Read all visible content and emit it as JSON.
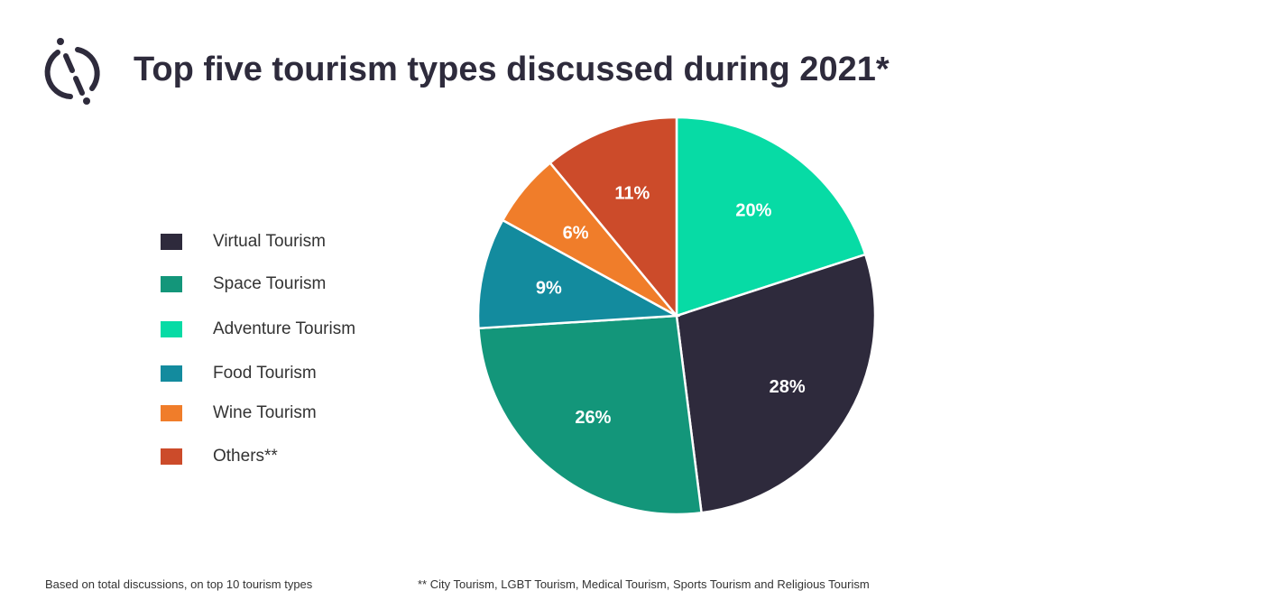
{
  "chart_data": {
    "type": "pie",
    "title": "Top five tourism types discussed during 2021*",
    "start": "top",
    "direction": "clockwise",
    "slices": [
      {
        "name": "Adventure Tourism",
        "value": 20,
        "label": "20%",
        "color": "#07dba5"
      },
      {
        "name": "Virtual Tourism",
        "value": 28,
        "label": "28%",
        "color": "#2e2a3c"
      },
      {
        "name": "Space Tourism",
        "value": 26,
        "label": "26%",
        "color": "#13967a"
      },
      {
        "name": "Food Tourism",
        "value": 9,
        "label": "9%",
        "color": "#138b9e"
      },
      {
        "name": "Wine Tourism",
        "value": 6,
        "label": "6%",
        "color": "#f07d2a"
      },
      {
        "name": "Others**",
        "value": 11,
        "label": "11%",
        "color": "#cc4b2a"
      }
    ],
    "legend": [
      {
        "name": "Virtual Tourism",
        "color": "#2e2a3c"
      },
      {
        "name": "Space Tourism",
        "color": "#13967a"
      },
      {
        "name": "Adventure Tourism",
        "color": "#07dba5"
      },
      {
        "name": "Food Tourism",
        "color": "#138b9e"
      },
      {
        "name": "Wine Tourism",
        "color": "#f07d2a"
      },
      {
        "name": "Others**",
        "color": "#cc4b2a"
      }
    ],
    "legend_placement": "left"
  },
  "footnotes": {
    "left": "Based on total discussions, on top 10  tourism types",
    "right": "** City Tourism, LGBT Tourism, Medical Tourism, Sports Tourism and Religious Tourism"
  }
}
